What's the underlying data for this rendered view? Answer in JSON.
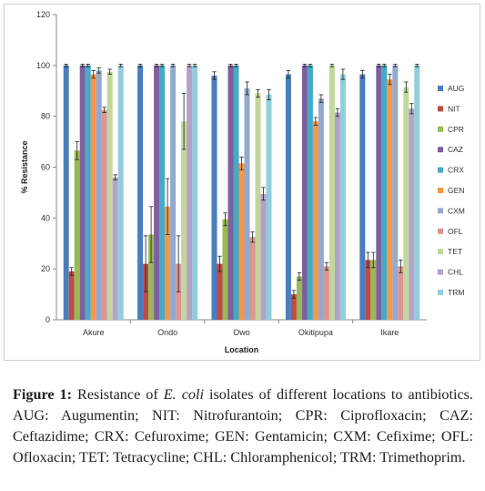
{
  "chart_data": {
    "type": "bar",
    "xlabel": "Location",
    "ylabel": "% Resistance",
    "ylim": [
      0,
      120
    ],
    "yticks": [
      0,
      20,
      40,
      60,
      80,
      100,
      120
    ],
    "grid": false,
    "legend_position": "right",
    "categories": [
      "Akure",
      "Ondo",
      "Owo",
      "Okitipupa",
      "Ikare"
    ],
    "series": [
      {
        "name": "AUG",
        "color": "#4a7ebb",
        "values": [
          100,
          100,
          96,
          96.5,
          96.5
        ],
        "errors": [
          0.5,
          0.5,
          1.5,
          1.5,
          1.5
        ]
      },
      {
        "name": "NIT",
        "color": "#be4b48",
        "values": [
          19,
          22,
          22,
          10,
          23.5
        ],
        "errors": [
          1.5,
          11,
          3,
          1.5,
          3
        ]
      },
      {
        "name": "CPR",
        "color": "#98b954",
        "values": [
          66.5,
          33.5,
          39.5,
          17,
          23.5
        ],
        "errors": [
          3.5,
          11,
          2.5,
          1.5,
          3
        ]
      },
      {
        "name": "CAZ",
        "color": "#7d60a0",
        "values": [
          100,
          100,
          100,
          100,
          100
        ],
        "errors": [
          0.5,
          0.5,
          0.5,
          0.5,
          0.5
        ]
      },
      {
        "name": "CRX",
        "color": "#46aac5",
        "values": [
          100,
          100,
          100,
          100,
          100
        ],
        "errors": [
          0.5,
          0.5,
          0.5,
          0.5,
          0.5
        ]
      },
      {
        "name": "GEN",
        "color": "#f79646",
        "values": [
          96.5,
          44.5,
          61.5,
          78,
          94.5
        ],
        "errors": [
          1.5,
          11,
          2.5,
          1.5,
          2
        ]
      },
      {
        "name": "CXM",
        "color": "#93a9cf",
        "values": [
          98,
          100,
          91,
          87,
          100
        ],
        "errors": [
          1,
          0.5,
          2.5,
          1.5,
          0.5
        ]
      },
      {
        "name": "OFL",
        "color": "#d99694",
        "values": [
          82.5,
          22,
          32.5,
          21,
          21
        ],
        "errors": [
          1,
          11,
          2,
          1.5,
          2.5
        ]
      },
      {
        "name": "TET",
        "color": "#c3d69b",
        "values": [
          97.5,
          78,
          89,
          100,
          91.5
        ],
        "errors": [
          1,
          11,
          1.5,
          0.5,
          2
        ]
      },
      {
        "name": "CHL",
        "color": "#b3a2c7",
        "values": [
          56,
          100,
          49.5,
          81.5,
          83
        ],
        "errors": [
          1,
          0.5,
          2.5,
          1.5,
          2
        ]
      },
      {
        "name": "TRM",
        "color": "#92cddc",
        "values": [
          100,
          100,
          88.5,
          96.5,
          100
        ],
        "errors": [
          0.5,
          0.5,
          2,
          2,
          0.5
        ]
      }
    ]
  },
  "caption": {
    "label": "Figure 1:",
    "text1": " Resistance of ",
    "organism": "E. coli",
    "text2": " isolates of different locations to antibiotics. AUG: Augumentin; NIT: Nitrofurantoin; CPR: Ciprofloxacin; CAZ: Ceftazidime; CRX: Cefuroxime; GEN: Gentamicin; CXM: Cefixime; OFL: Ofloxacin; TET: Tetracycline; CHL: Chloramphenicol; TRM: Trimethoprim."
  }
}
